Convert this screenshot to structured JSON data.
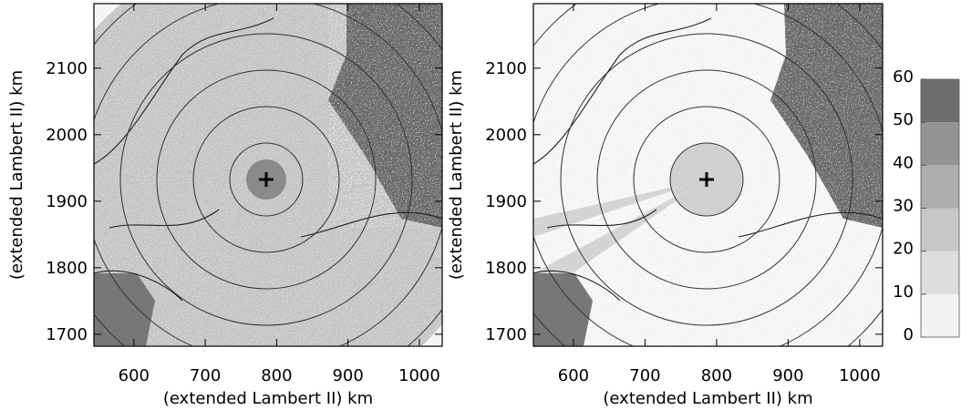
{
  "chart_data": [
    {
      "type": "map",
      "xlabel": "(extended Lambert II) km",
      "ylabel": "(extended Lambert II) km",
      "xlim": [
        544,
        1032
      ],
      "xticks": [
        600,
        700,
        800,
        900,
        1000
      ],
      "ylim": [
        1682,
        2197
      ],
      "yticks": [
        1700,
        1800,
        1900,
        2000,
        2100
      ]
    },
    {
      "type": "map",
      "xlabel": "(extended Lambert II) km",
      "ylabel": "(extended Lambert II) km",
      "xlim": [
        544,
        1032
      ],
      "xticks": [
        600,
        700,
        800,
        900,
        1000
      ],
      "ylim": [
        1682,
        2197
      ],
      "yticks": [
        1700,
        1800,
        1900,
        2000,
        2100
      ]
    }
  ],
  "colorbar": {
    "ticks": [
      0,
      10,
      20,
      30,
      40,
      50,
      60
    ],
    "colors": [
      "#f2f2f2",
      "#dcdcdc",
      "#c6c6c6",
      "#adadad",
      "#939393",
      "#6e6e6e"
    ]
  }
}
